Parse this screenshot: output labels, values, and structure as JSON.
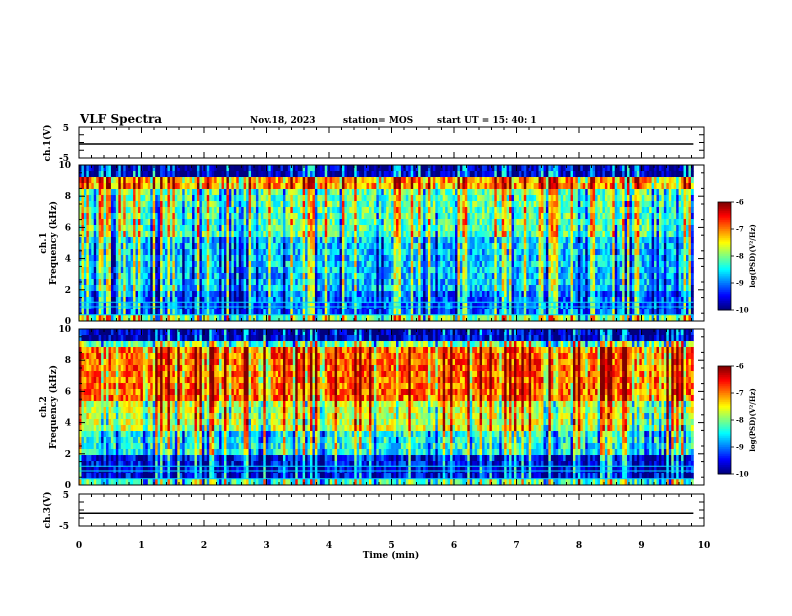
{
  "header": {
    "title": "VLF Spectra",
    "date": "Nov.18, 2023",
    "station": "station= MOS",
    "start": "start  UT =   15: 40: 1"
  },
  "chart_data": [
    {
      "type": "line",
      "name": "ch1-waveform",
      "ylabel": "ch.1(V)",
      "ylim": [
        -5,
        5
      ],
      "yticks": [
        "5",
        "-5"
      ],
      "x": [
        0,
        9.83
      ],
      "values": [
        -0.5,
        -0.5
      ]
    },
    {
      "type": "heatmap",
      "name": "ch1-spectrogram",
      "ylabel_top": "ch.1",
      "ylabel": "Frequency (kHz)",
      "ylim": [
        0,
        10
      ],
      "yticks": [
        "0",
        "2",
        "4",
        "6",
        "8",
        "10"
      ],
      "xlim": [
        0,
        10
      ],
      "data_extent_min": 9.83,
      "colorbar": {
        "label": "log(PSD)(V²/Hz)",
        "range": [
          -10,
          -6
        ],
        "ticks": [
          "-6",
          "-7",
          "-8",
          "-9",
          "-10"
        ]
      }
    },
    {
      "type": "heatmap",
      "name": "ch2-spectrogram",
      "ylabel_top": "ch.2",
      "ylabel": "Frequency (kHz)",
      "ylim": [
        0,
        10
      ],
      "yticks": [
        "0",
        "2",
        "4",
        "6",
        "8",
        "10"
      ],
      "xlim": [
        0,
        10
      ],
      "data_extent_min": 9.83,
      "colorbar": {
        "label": "log(PSD)(V²/Hz)",
        "range": [
          -10,
          -6
        ],
        "ticks": [
          "-6",
          "-7",
          "-8",
          "-9",
          "-10"
        ]
      }
    },
    {
      "type": "line",
      "name": "ch3-waveform",
      "ylabel": "ch.3(V)",
      "ylim": [
        -5,
        5
      ],
      "yticks": [
        "5",
        "-5"
      ],
      "x": [
        0,
        9.83
      ],
      "values": [
        -1,
        -1
      ],
      "xlabel": "Time  (min)",
      "xlim": [
        0,
        10
      ],
      "xticks": [
        "0",
        "1",
        "2",
        "3",
        "4",
        "5",
        "6",
        "7",
        "8",
        "9",
        "10"
      ]
    }
  ]
}
